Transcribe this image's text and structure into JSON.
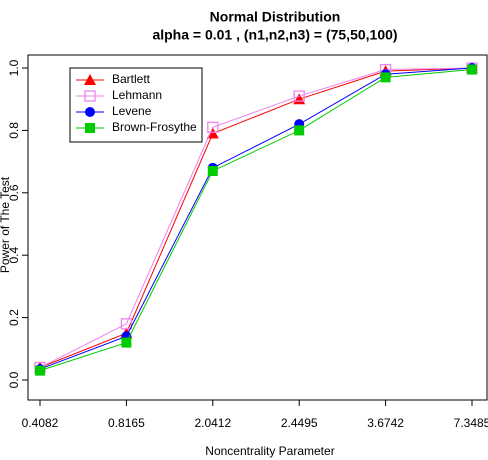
{
  "chart_data": {
    "type": "line",
    "title": "Normal Distribution",
    "subtitle": "alpha = 0.01 , (n1,n2,n3) = (75,50,100)",
    "x_label": "Noncentrality Parameter",
    "y_label": "Power of The Test",
    "categories": [
      "0.4082",
      "0.8165",
      "2.0412",
      "2.4495",
      "3.6742",
      "7.3485"
    ],
    "series": [
      {
        "name": "Bartlett",
        "color": "#ff0000",
        "marker": "triangle",
        "values": [
          0.04,
          0.15,
          0.79,
          0.9,
          0.99,
          1.0
        ]
      },
      {
        "name": "Lehmann",
        "color": "#ee82ee",
        "marker": "open-square",
        "values": [
          0.04,
          0.18,
          0.81,
          0.91,
          0.995,
          1.0
        ]
      },
      {
        "name": "Levene",
        "color": "#0000ff",
        "marker": "circle",
        "values": [
          0.035,
          0.14,
          0.68,
          0.82,
          0.98,
          1.0
        ]
      },
      {
        "name": "Brown-Frosythe",
        "color": "#00cc00",
        "marker": "square",
        "values": [
          0.03,
          0.12,
          0.67,
          0.8,
          0.97,
          0.995
        ]
      }
    ],
    "ylim": [
      0,
      1
    ],
    "yticks": [
      {
        "value": 0,
        "label": "0.0"
      },
      0.2,
      0.4,
      0.6,
      0.8,
      {
        "value": 1,
        "label": "1.0"
      }
    ],
    "legend": "top-left"
  }
}
